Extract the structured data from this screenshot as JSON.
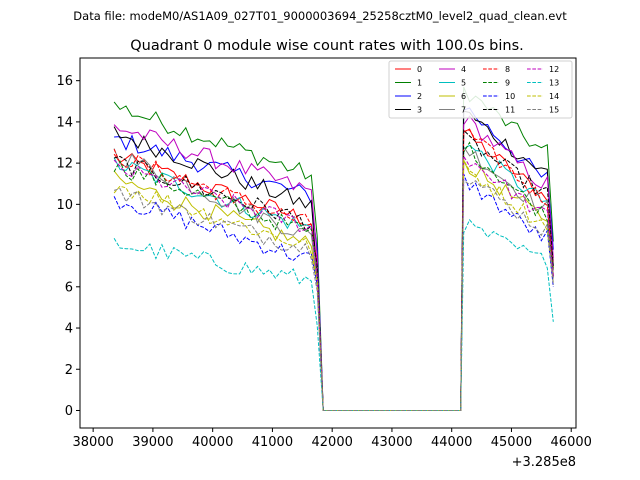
{
  "chart_data": {
    "type": "line",
    "suptitle": "Data file: modeM0/AS1A09_027T01_9000003694_25258cztM0_level2_quad_clean.evt",
    "title": "Quadrant 0 module wise count rates with 100.0s bins.",
    "xlabel": "",
    "ylabel": "",
    "x_offset_label": "+3.285e8",
    "xlim": [
      37780,
      46080
    ],
    "ylim": [
      -0.85,
      17.1
    ],
    "x_ticks": [
      38000,
      39000,
      40000,
      41000,
      42000,
      43000,
      44000,
      45000,
      46000
    ],
    "y_ticks": [
      0,
      2,
      4,
      6,
      8,
      10,
      12,
      14,
      16
    ],
    "segment1": {
      "x_start": 38350,
      "x_end": 41650,
      "step": 100
    },
    "drop_x": 41750,
    "gap": {
      "x_start": 41850,
      "x_end": 44150
    },
    "segment2": {
      "x_start": 44200,
      "x_end": 45700,
      "step": 100
    },
    "legend_position": "upper right",
    "series": [
      {
        "name": "0",
        "color": "#ff0000",
        "dash": "solid",
        "start": 12.3,
        "end": 9.2,
        "peak2": 13.5,
        "end2": 10.5,
        "last": 7.2
      },
      {
        "name": "1",
        "color": "#008000",
        "dash": "solid",
        "start": 14.8,
        "end": 11.4,
        "peak2": 15.6,
        "end2": 12.6,
        "last": 8.2
      },
      {
        "name": "2",
        "color": "#0000ff",
        "dash": "solid",
        "start": 13.2,
        "end": 10.4,
        "peak2": 14.8,
        "end2": 11.3,
        "last": 7.8
      },
      {
        "name": "3",
        "color": "#000000",
        "dash": "solid",
        "start": 13.5,
        "end": 9.9,
        "peak2": 14.5,
        "end2": 11.6,
        "last": 6.5
      },
      {
        "name": "4",
        "color": "#bf00bf",
        "dash": "solid",
        "start": 13.8,
        "end": 10.6,
        "peak2": 14.2,
        "end2": 11.0,
        "last": 7.4
      },
      {
        "name": "5",
        "color": "#00bfbf",
        "dash": "solid",
        "start": 12.0,
        "end": 8.8,
        "peak2": 13.0,
        "end2": 10.2,
        "last": 7.0
      },
      {
        "name": "6",
        "color": "#bfbf00",
        "dash": "solid",
        "start": 11.2,
        "end": 8.0,
        "peak2": 12.0,
        "end2": 9.4,
        "last": 6.6
      },
      {
        "name": "7",
        "color": "#808080",
        "dash": "solid",
        "start": 12.5,
        "end": 8.4,
        "peak2": 12.8,
        "end2": 9.8,
        "last": 6.4
      },
      {
        "name": "8",
        "color": "#ff0000",
        "dash": "dashed",
        "start": 12.4,
        "end": 9.0,
        "peak2": 13.6,
        "end2": 10.3,
        "last": 6.9
      },
      {
        "name": "9",
        "color": "#008000",
        "dash": "dashed",
        "start": 11.9,
        "end": 8.6,
        "peak2": 12.9,
        "end2": 9.6,
        "last": 6.8
      },
      {
        "name": "10",
        "color": "#0000ff",
        "dash": "dashed",
        "start": 10.3,
        "end": 7.3,
        "peak2": 11.2,
        "end2": 8.4,
        "last": 6.0
      },
      {
        "name": "11",
        "color": "#000000",
        "dash": "dashed",
        "start": 12.1,
        "end": 9.1,
        "peak2": 13.2,
        "end2": 10.6,
        "last": 7.0
      },
      {
        "name": "12",
        "color": "#bf00bf",
        "dash": "dashed",
        "start": 11.8,
        "end": 8.9,
        "peak2": 12.4,
        "end2": 9.5,
        "last": 6.5
      },
      {
        "name": "13",
        "color": "#00bfbf",
        "dash": "dashed",
        "start": 8.1,
        "end": 6.3,
        "peak2": 9.0,
        "end2": 7.3,
        "last": 4.3
      },
      {
        "name": "14",
        "color": "#bfbf00",
        "dash": "dashed",
        "start": 11.0,
        "end": 7.9,
        "peak2": 11.8,
        "end2": 9.1,
        "last": 6.2
      },
      {
        "name": "15",
        "color": "#808080",
        "dash": "dashed",
        "start": 10.6,
        "end": 7.8,
        "peak2": 11.5,
        "end2": 8.8,
        "last": 6.1
      }
    ]
  }
}
